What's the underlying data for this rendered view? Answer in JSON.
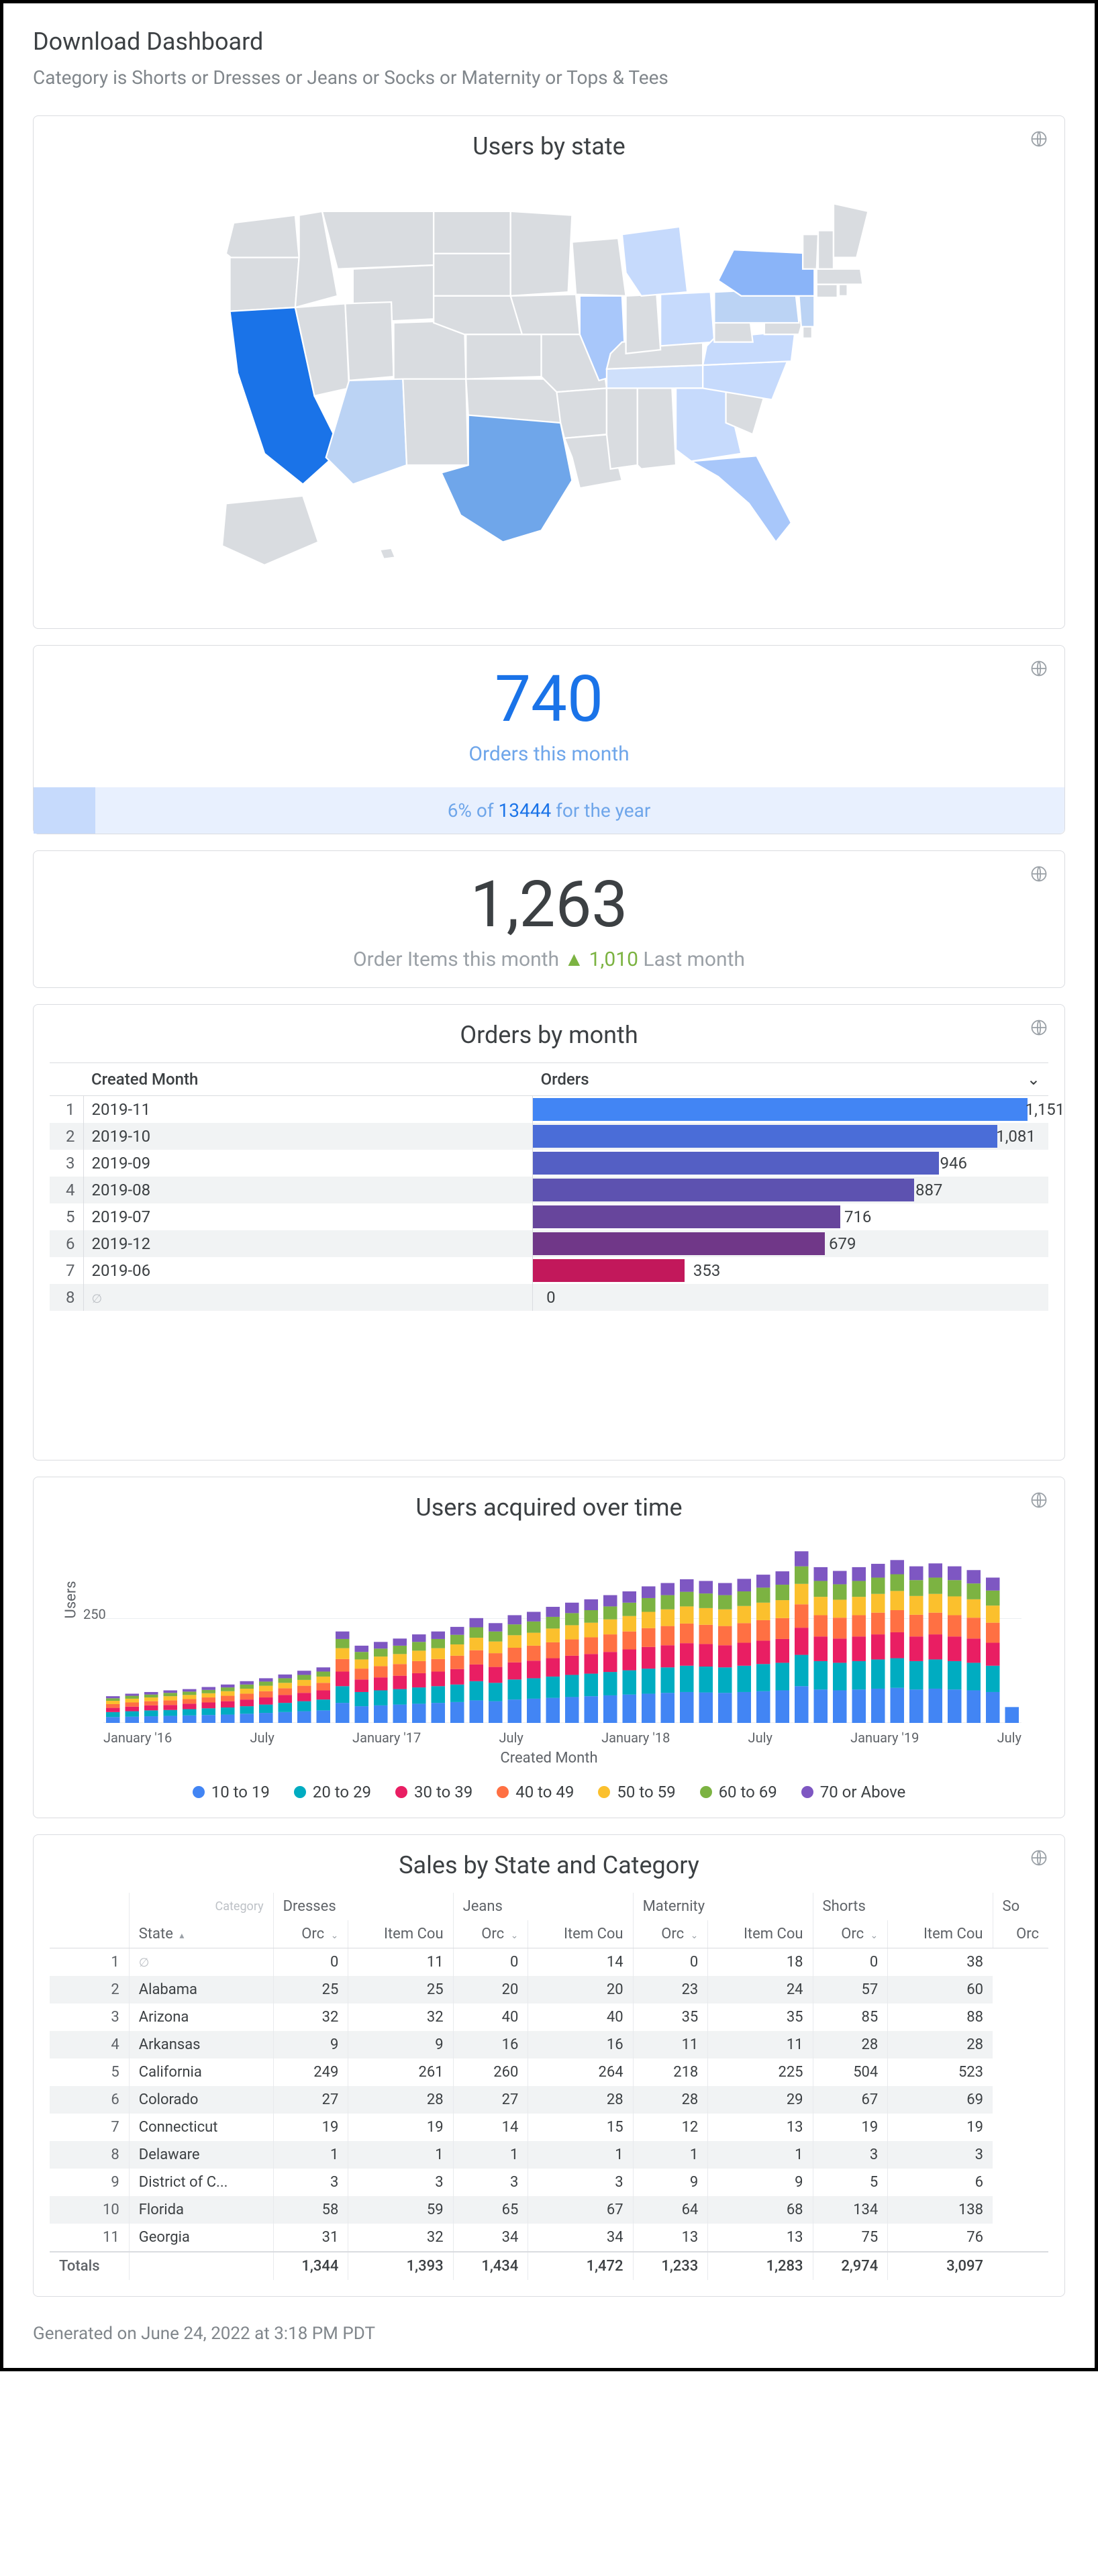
{
  "title": "Download Dashboard",
  "filter_text": "Category is Shorts or Dresses or Jeans or Socks or Maternity or Tops & Tees",
  "footer": "Generated on June 24, 2022 at 3:18 PM PDT",
  "map_tile": {
    "title": "Users by state",
    "base_fill": "#d9dce0",
    "stroke": "#ffffff",
    "highlight_colors": {
      "CA": "#1a73e8",
      "TX": "#6fa6ea",
      "NY": "#8ab4f8",
      "FL": "#a8c7fa",
      "IL": "#a8c7fa",
      "PA": "#bbd3f4",
      "OH": "#c6dafc",
      "GA": "#c6dafc",
      "MI": "#c6dafc",
      "NC": "#c6dafc",
      "VA": "#c6dafc",
      "NJ": "#bbd3f4",
      "AZ": "#bbd3f4",
      "TN": "#cfe0fb"
    }
  },
  "kpi_orders": {
    "value": "740",
    "label": "Orders this month",
    "comparison_prefix": "6%",
    "comparison_of": " of ",
    "comparison_total": "13444",
    "comparison_suffix": " for the year",
    "pct_fill": 6,
    "value_color": "#1a73e8",
    "total_color": "#1a73e8",
    "text_color": "#6fa6ea"
  },
  "kpi_items": {
    "value": "1,263",
    "label_prefix": "Order Items this month ",
    "arrow": "▲",
    "change": "1,010",
    "label_suffix": " Last month"
  },
  "orders_by_month": {
    "title": "Orders by month",
    "headers": [
      "Created Month",
      "Orders"
    ],
    "max": 1200,
    "rows": [
      {
        "month": "2019-11",
        "value": 1151,
        "color": "#4285f4"
      },
      {
        "month": "2019-10",
        "value": 1081,
        "color": "#4a6dd8"
      },
      {
        "month": "2019-09",
        "value": 946,
        "color": "#545fc4"
      },
      {
        "month": "2019-08",
        "value": 887,
        "color": "#5d52b0"
      },
      {
        "month": "2019-07",
        "value": 716,
        "color": "#67459c"
      },
      {
        "month": "2019-12",
        "value": 679,
        "color": "#703788"
      },
      {
        "month": "2019-06",
        "value": 353,
        "color": "#c2185b"
      },
      {
        "month": "",
        "value": 0,
        "color": "#e91e63",
        "null": true
      }
    ]
  },
  "users_over_time": {
    "title": "Users acquired over time",
    "y_label": "Users",
    "y_tick": "250",
    "x_label": "Created Month",
    "x_ticks": [
      "January '16",
      "July",
      "January '17",
      "July",
      "January '18",
      "July",
      "January '19",
      "July"
    ],
    "legend": [
      {
        "label": "10 to 19",
        "color": "#4285f4"
      },
      {
        "label": "20 to 29",
        "color": "#00acc1"
      },
      {
        "label": "30 to 39",
        "color": "#e91e63"
      },
      {
        "label": "40 to 49",
        "color": "#ff7043"
      },
      {
        "label": "50 to 59",
        "color": "#fbc02d"
      },
      {
        "label": "60 to 69",
        "color": "#7cb342"
      },
      {
        "label": "70 or Above",
        "color": "#7e57c2"
      }
    ],
    "y_max": 450,
    "bars": [
      [
        14,
        12,
        10,
        9,
        8,
        6,
        5
      ],
      [
        15,
        13,
        11,
        10,
        9,
        7,
        5
      ],
      [
        16,
        14,
        12,
        10,
        9,
        7,
        6
      ],
      [
        17,
        14,
        12,
        11,
        10,
        8,
        6
      ],
      [
        18,
        15,
        13,
        11,
        10,
        8,
        6
      ],
      [
        19,
        16,
        14,
        12,
        10,
        8,
        7
      ],
      [
        20,
        17,
        15,
        13,
        11,
        9,
        7
      ],
      [
        22,
        18,
        16,
        14,
        12,
        10,
        8
      ],
      [
        24,
        20,
        17,
        15,
        13,
        10,
        8
      ],
      [
        26,
        22,
        19,
        16,
        13,
        11,
        9
      ],
      [
        28,
        24,
        20,
        17,
        14,
        12,
        10
      ],
      [
        30,
        26,
        22,
        18,
        15,
        12,
        10
      ],
      [
        48,
        40,
        35,
        30,
        26,
        22,
        18
      ],
      [
        40,
        34,
        30,
        26,
        22,
        18,
        15
      ],
      [
        42,
        36,
        31,
        27,
        23,
        19,
        16
      ],
      [
        44,
        37,
        32,
        28,
        24,
        20,
        17
      ],
      [
        46,
        39,
        34,
        29,
        25,
        21,
        18
      ],
      [
        48,
        40,
        35,
        30,
        26,
        22,
        18
      ],
      [
        50,
        42,
        37,
        32,
        27,
        23,
        19
      ],
      [
        54,
        46,
        40,
        34,
        30,
        25,
        22
      ],
      [
        52,
        44,
        38,
        33,
        28,
        24,
        20
      ],
      [
        56,
        48,
        41,
        35,
        30,
        26,
        22
      ],
      [
        58,
        49,
        42,
        36,
        31,
        27,
        23
      ],
      [
        60,
        51,
        44,
        38,
        33,
        28,
        24
      ],
      [
        62,
        53,
        46,
        39,
        34,
        29,
        25
      ],
      [
        64,
        54,
        47,
        40,
        35,
        30,
        26
      ],
      [
        66,
        56,
        48,
        42,
        36,
        31,
        27
      ],
      [
        68,
        58,
        50,
        43,
        37,
        32,
        27
      ],
      [
        70,
        60,
        52,
        45,
        39,
        33,
        28
      ],
      [
        72,
        61,
        53,
        46,
        40,
        34,
        29
      ],
      [
        74,
        63,
        54,
        47,
        41,
        35,
        30
      ],
      [
        73,
        62,
        54,
        46,
        40,
        35,
        30
      ],
      [
        72,
        61,
        53,
        46,
        40,
        34,
        29
      ],
      [
        74,
        63,
        55,
        47,
        41,
        35,
        30
      ],
      [
        76,
        65,
        56,
        49,
        42,
        36,
        31
      ],
      [
        78,
        66,
        57,
        50,
        43,
        37,
        32
      ],
      [
        88,
        75,
        65,
        56,
        49,
        42,
        36
      ],
      [
        80,
        68,
        59,
        51,
        44,
        38,
        33
      ],
      [
        78,
        66,
        58,
        50,
        43,
        37,
        32
      ],
      [
        80,
        68,
        59,
        51,
        44,
        38,
        33
      ],
      [
        82,
        70,
        60,
        52,
        45,
        39,
        33
      ],
      [
        84,
        71,
        62,
        53,
        46,
        40,
        34
      ],
      [
        80,
        68,
        59,
        52,
        45,
        38,
        33
      ],
      [
        82,
        70,
        60,
        52,
        45,
        39,
        34
      ],
      [
        80,
        68,
        59,
        51,
        45,
        39,
        33
      ],
      [
        78,
        66,
        58,
        50,
        44,
        38,
        32
      ],
      [
        74,
        63,
        55,
        48,
        41,
        36,
        31
      ],
      [
        38,
        0,
        0,
        0,
        0,
        0,
        0
      ]
    ]
  },
  "sales": {
    "title": "Sales by State and Category",
    "category_label": "Category",
    "state_label": "State",
    "categories": [
      "Dresses",
      "Jeans",
      "Maternity",
      "Shorts",
      "So"
    ],
    "sub_headers": [
      "Orc",
      "Item Cou"
    ],
    "rows": [
      {
        "idx": 1,
        "state": "",
        "null": true,
        "vals": [
          0,
          11,
          0,
          14,
          0,
          18,
          0,
          38
        ]
      },
      {
        "idx": 2,
        "state": "Alabama",
        "vals": [
          25,
          25,
          20,
          20,
          23,
          24,
          57,
          60
        ]
      },
      {
        "idx": 3,
        "state": "Arizona",
        "vals": [
          32,
          32,
          40,
          40,
          35,
          35,
          85,
          88
        ]
      },
      {
        "idx": 4,
        "state": "Arkansas",
        "vals": [
          9,
          9,
          16,
          16,
          11,
          11,
          28,
          28
        ]
      },
      {
        "idx": 5,
        "state": "California",
        "vals": [
          249,
          261,
          260,
          264,
          218,
          225,
          504,
          523
        ]
      },
      {
        "idx": 6,
        "state": "Colorado",
        "vals": [
          27,
          28,
          27,
          28,
          28,
          29,
          67,
          69
        ]
      },
      {
        "idx": 7,
        "state": "Connecticut",
        "vals": [
          19,
          19,
          14,
          15,
          12,
          13,
          19,
          19
        ]
      },
      {
        "idx": 8,
        "state": "Delaware",
        "vals": [
          1,
          1,
          1,
          1,
          1,
          1,
          3,
          3
        ]
      },
      {
        "idx": 9,
        "state": "District of C...",
        "vals": [
          3,
          3,
          3,
          3,
          9,
          9,
          5,
          6
        ]
      },
      {
        "idx": 10,
        "state": "Florida",
        "vals": [
          58,
          59,
          65,
          67,
          64,
          68,
          134,
          138
        ]
      },
      {
        "idx": 11,
        "state": "Georgia",
        "vals": [
          31,
          32,
          34,
          34,
          13,
          13,
          75,
          76
        ]
      }
    ],
    "totals_label": "Totals",
    "totals": [
      1344,
      1393,
      1434,
      1472,
      1233,
      1283,
      2974,
      3097
    ]
  }
}
